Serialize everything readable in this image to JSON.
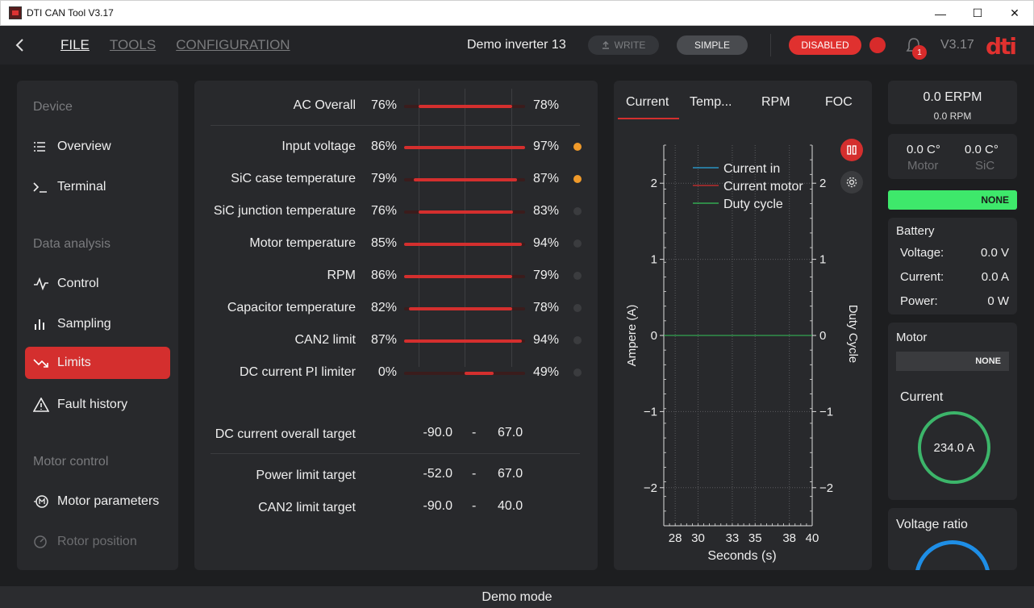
{
  "window": {
    "title": "DTI CAN Tool V3.17"
  },
  "toolbar": {
    "menu": {
      "file": "FILE",
      "tools": "TOOLS",
      "configuration": "CONFIGURATION"
    },
    "device_name": "Demo inverter 13",
    "write_label": "WRITE",
    "simple_label": "SIMPLE",
    "disabled_label": "DISABLED",
    "notification_count": "1",
    "version": "V3.17",
    "logo_text": "dti"
  },
  "sidebar": {
    "sections": {
      "device": "Device",
      "data_analysis": "Data analysis",
      "motor_control": "Motor control"
    },
    "items": {
      "overview": "Overview",
      "terminal": "Terminal",
      "control": "Control",
      "sampling": "Sampling",
      "limits": "Limits",
      "fault_history": "Fault history",
      "motor_parameters": "Motor parameters",
      "rotor_position": "Rotor position"
    }
  },
  "limits": {
    "overall": {
      "label": "AC Overall",
      "left": "76%",
      "right": "78%",
      "fill_start": 0.12,
      "fill_end": 0.89
    },
    "rows": [
      {
        "label": "Input voltage",
        "left": "86%",
        "right": "97%",
        "fill_start": 0.0,
        "fill_end": 1.0,
        "indicator": "warn"
      },
      {
        "label": "SiC case temperature",
        "left": "79%",
        "right": "87%",
        "fill_start": 0.08,
        "fill_end": 0.93,
        "indicator": "warn"
      },
      {
        "label": "SiC junction temperature",
        "left": "76%",
        "right": "83%",
        "fill_start": 0.12,
        "fill_end": 0.9,
        "indicator": "off"
      },
      {
        "label": "Motor temperature",
        "left": "85%",
        "right": "94%",
        "fill_start": 0.0,
        "fill_end": 0.97,
        "indicator": "off"
      },
      {
        "label": "RPM",
        "left": "86%",
        "right": "79%",
        "fill_start": 0.0,
        "fill_end": 0.89,
        "indicator": "off"
      },
      {
        "label": "Capacitor temperature",
        "left": "82%",
        "right": "78%",
        "fill_start": 0.04,
        "fill_end": 0.89,
        "indicator": "off"
      },
      {
        "label": "CAN2 limit",
        "left": "87%",
        "right": "94%",
        "fill_start": 0.0,
        "fill_end": 0.97,
        "indicator": "off"
      },
      {
        "label": "DC current PI limiter",
        "left": "0%",
        "right": "49%",
        "fill_start": 0.5,
        "fill_end": 0.74,
        "indicator": "off"
      }
    ],
    "targets": [
      {
        "label": "DC current overall target",
        "min": "-90.0",
        "dash": "-",
        "max": "67.0"
      },
      {
        "label": "Power limit target",
        "min": "-52.0",
        "dash": "-",
        "max": "67.0"
      },
      {
        "label": "CAN2 limit target",
        "min": "-90.0",
        "dash": "-",
        "max": "40.0"
      }
    ]
  },
  "chart_tabs": {
    "current": "Current",
    "temp": "Temp...",
    "rpm": "RPM",
    "foc": "FOC"
  },
  "chart_data": {
    "type": "line",
    "xlabel": "Seconds (s)",
    "ylabel": "Ampere (A)",
    "y2label": "Duty Cycle",
    "xlim": [
      27,
      40
    ],
    "ylim": [
      -2.5,
      2.5
    ],
    "xticks": [
      28,
      30,
      33,
      35,
      38,
      40
    ],
    "yticks": [
      2,
      1,
      0,
      -1,
      -2
    ],
    "grid": true,
    "legend_position": "top",
    "series": [
      {
        "name": "Current in",
        "color": "#2aa7e0",
        "x": [
          27,
          40
        ],
        "y": [
          0,
          0
        ]
      },
      {
        "name": "Current motor",
        "color": "#d42f2e",
        "x": [
          27,
          40
        ],
        "y": [
          0,
          0
        ]
      },
      {
        "name": "Duty cycle",
        "color": "#35c35a",
        "x": [
          27,
          40
        ],
        "y": [
          0,
          0
        ]
      }
    ]
  },
  "right": {
    "erpm": "0.0 ERPM",
    "rpm": "0.0 RPM",
    "motor_temp": "0.0 C°",
    "motor_temp_label": "Motor",
    "sic_temp": "0.0 C°",
    "sic_temp_label": "SiC",
    "status": "NONE",
    "status_color": "#3ee86b",
    "battery": {
      "title": "Battery",
      "voltage_label": "Voltage:",
      "voltage": "0.0 V",
      "current_label": "Current:",
      "current": "0.0 A",
      "power_label": "Power:",
      "power": "0 W"
    },
    "motor": {
      "title": "Motor",
      "status": "NONE",
      "current_title": "Current",
      "current_value": "234.0 A"
    },
    "voltage_ratio_title": "Voltage ratio"
  },
  "footer": {
    "mode": "Demo mode"
  }
}
